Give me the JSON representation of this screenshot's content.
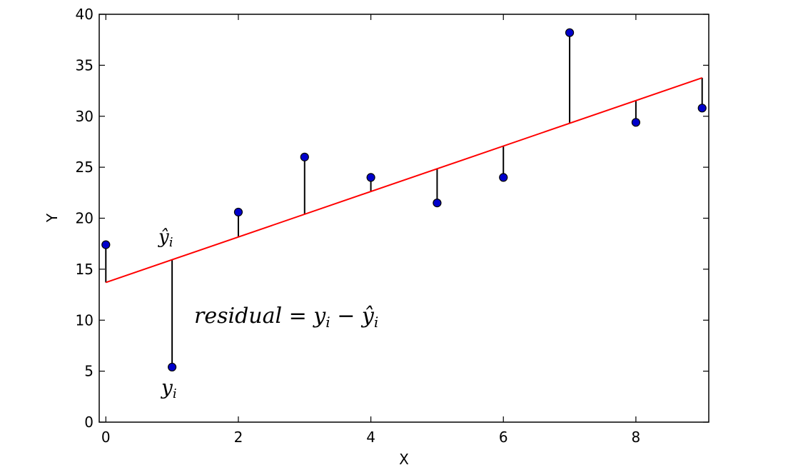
{
  "chart_data": {
    "type": "scatter",
    "xlabel": "X",
    "ylabel": "Y",
    "xlim": [
      -0.1,
      9.1
    ],
    "ylim": [
      0,
      40
    ],
    "xticks": [
      0,
      2,
      4,
      6,
      8
    ],
    "yticks": [
      0,
      5,
      10,
      15,
      20,
      25,
      30,
      35,
      40
    ],
    "grid": false,
    "points": [
      {
        "x": 0,
        "y": 17.4
      },
      {
        "x": 1,
        "y": 5.4
      },
      {
        "x": 2,
        "y": 20.6
      },
      {
        "x": 3,
        "y": 26.0
      },
      {
        "x": 4,
        "y": 24.0
      },
      {
        "x": 5,
        "y": 21.5
      },
      {
        "x": 6,
        "y": 24.0
      },
      {
        "x": 7,
        "y": 38.2
      },
      {
        "x": 8,
        "y": 29.4
      },
      {
        "x": 9,
        "y": 30.8
      }
    ],
    "fit_line": {
      "intercept": 13.7,
      "slope": 2.23
    },
    "colors": {
      "points": "#0000cc",
      "fit_line": "#ff0000",
      "residuals": "#000000"
    },
    "annotations": {
      "y_hat_label": "ŷi",
      "y_label": "yi",
      "formula": "residual = yi − ŷi"
    }
  }
}
